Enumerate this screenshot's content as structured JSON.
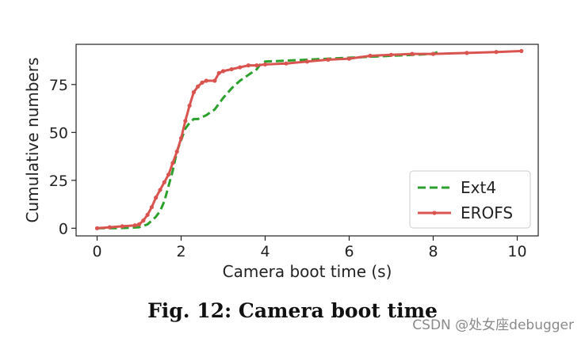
{
  "chart_data": {
    "type": "line",
    "xlabel": "Camera boot time (s)",
    "ylabel": "Cumulative numbers",
    "xlim": [
      -0.5,
      10.5
    ],
    "ylim": [
      -4,
      96
    ],
    "xticks": [
      0,
      2,
      4,
      6,
      8,
      10
    ],
    "yticks": [
      0,
      25,
      50,
      75
    ],
    "grid": false,
    "legend_position": "lower-right",
    "series": [
      {
        "name": "Ext4",
        "color": "#2ca02c",
        "style": "dashed",
        "x": [
          0,
          0.5,
          1.0,
          1.2,
          1.4,
          1.5,
          1.6,
          1.7,
          1.8,
          1.9,
          2.0,
          2.1,
          2.2,
          2.3,
          2.4,
          2.6,
          2.8,
          3.0,
          3.2,
          3.4,
          3.6,
          3.8,
          3.9,
          4.0,
          5.0,
          6.0,
          7.0,
          8.0,
          8.1
        ],
        "y": [
          0,
          0,
          0.5,
          2,
          6,
          9,
          14,
          22,
          30,
          40,
          46,
          52,
          55,
          57,
          57,
          59,
          62,
          68,
          73,
          77,
          80,
          83,
          86,
          87,
          88,
          89,
          90,
          91,
          92
        ]
      },
      {
        "name": "EROFS",
        "color": "#d9534f",
        "style": "solid-dots",
        "x": [
          0,
          0.3,
          0.6,
          0.9,
          1.0,
          1.1,
          1.2,
          1.3,
          1.4,
          1.5,
          1.6,
          1.7,
          1.8,
          1.9,
          2.0,
          2.1,
          2.2,
          2.3,
          2.4,
          2.5,
          2.6,
          2.8,
          2.9,
          3.0,
          3.2,
          3.4,
          3.6,
          3.8,
          4.0,
          4.5,
          5.0,
          5.5,
          6.0,
          6.5,
          7.0,
          7.5,
          8.0,
          8.8,
          9.5,
          10.1
        ],
        "y": [
          0,
          0.5,
          1,
          1.5,
          2,
          4,
          7,
          11,
          16,
          20,
          24,
          28,
          34,
          40,
          47,
          56,
          64,
          71,
          74,
          76,
          77,
          77,
          81,
          82,
          83,
          84,
          85,
          85,
          85.5,
          86,
          87,
          88,
          88.5,
          90,
          90.5,
          91,
          91,
          91.5,
          92,
          92.5
        ]
      }
    ]
  },
  "caption": "Fig. 12: Camera boot time",
  "watermark": "CSDN @处女座debugger"
}
